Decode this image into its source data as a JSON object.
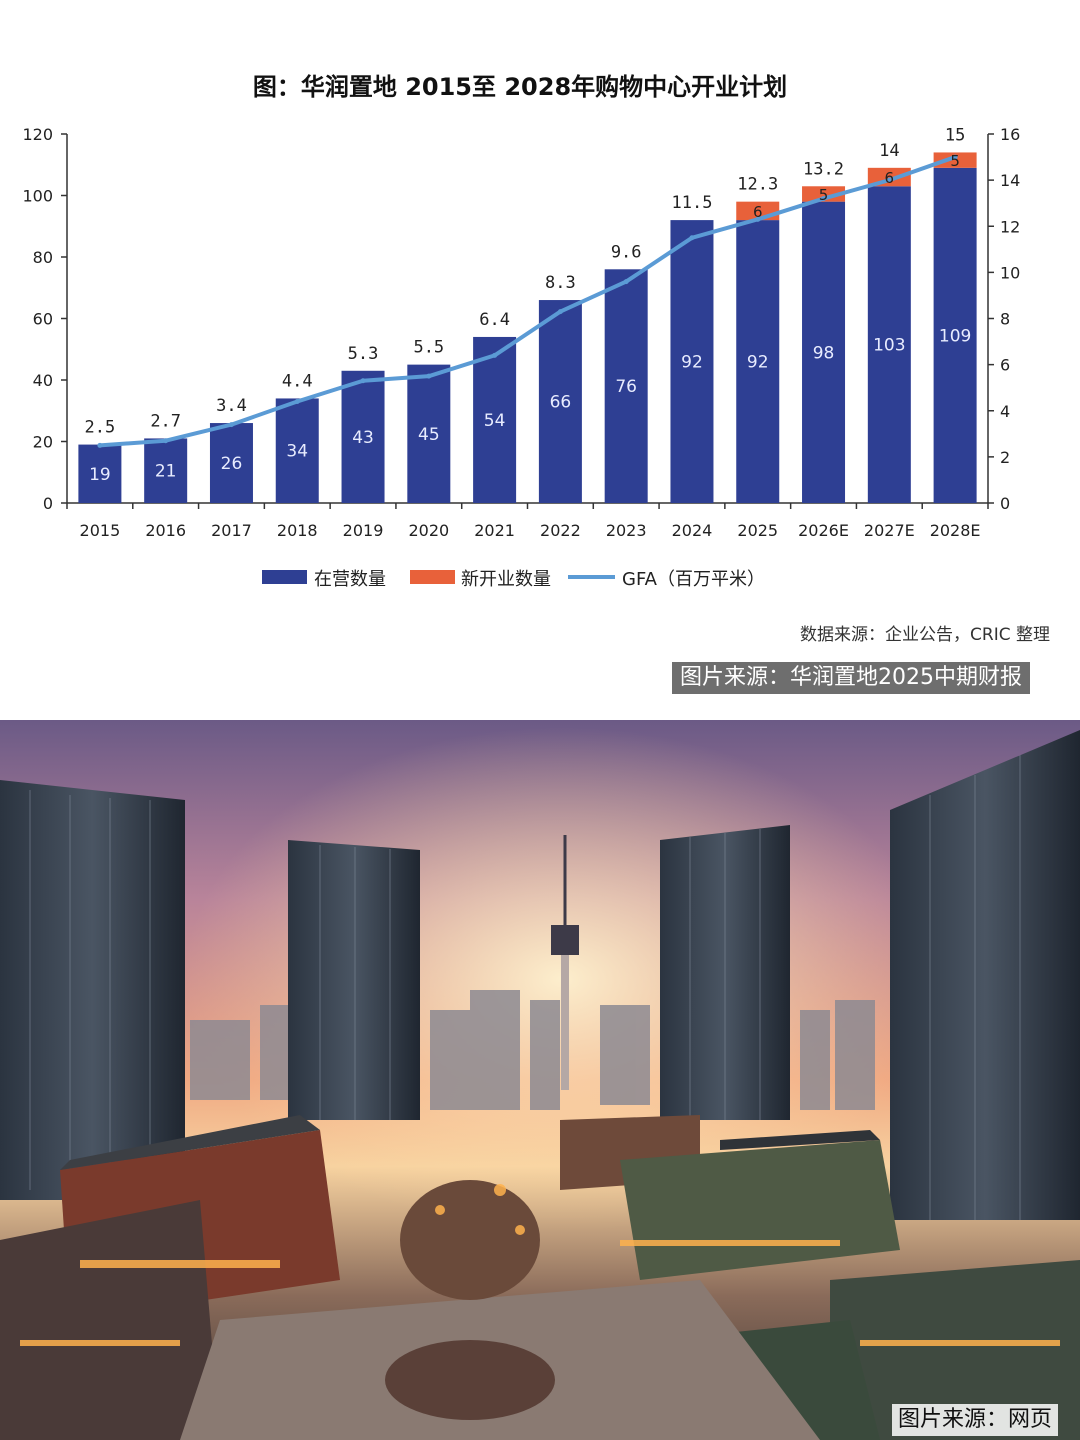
{
  "chart_data": {
    "type": "bar",
    "title": "图：华润置地 2015至 2028年购物中心开业计划",
    "categories": [
      "2015",
      "2016",
      "2017",
      "2018",
      "2019",
      "2020",
      "2021",
      "2022",
      "2023",
      "2024",
      "2025",
      "2026E",
      "2027E",
      "2028E"
    ],
    "series": [
      {
        "name": "在营数量",
        "type": "bar",
        "axis": "left",
        "color": "#2e3f93",
        "values": [
          19,
          21,
          26,
          34,
          43,
          45,
          54,
          66,
          76,
          92,
          92,
          98,
          103,
          109
        ]
      },
      {
        "name": "新开业数量",
        "type": "bar-stacked",
        "axis": "left",
        "color": "#e8613a",
        "values": [
          0,
          0,
          0,
          0,
          0,
          0,
          0,
          0,
          0,
          0,
          6,
          5,
          6,
          5
        ],
        "labels": [
          "",
          "",
          "",
          "",
          "",
          "",
          "",
          "",
          "",
          "",
          "6",
          "5",
          "6",
          "5"
        ]
      },
      {
        "name": "GFA（百万平米）",
        "type": "line",
        "axis": "right",
        "color": "#5b9bd5",
        "values": [
          2.5,
          2.7,
          3.4,
          4.4,
          5.3,
          5.5,
          6.4,
          8.3,
          9.6,
          11.5,
          12.3,
          13.2,
          14,
          15
        ],
        "labels": [
          "2.5",
          "2.7",
          "3.4",
          "4.4",
          "5.3",
          "5.5",
          "6.4",
          "8.3",
          "9.6",
          "11.5",
          "12.3",
          "13.2",
          "14",
          "15"
        ]
      }
    ],
    "y_left": {
      "min": 0,
      "max": 120,
      "ticks": [
        "0",
        "20",
        "40",
        "60",
        "80",
        "100",
        "120"
      ]
    },
    "y_right": {
      "min": 0,
      "max": 16,
      "ticks": [
        "0",
        "2",
        "4",
        "6",
        "8",
        "10",
        "12",
        "14",
        "16"
      ]
    },
    "legend_position": "bottom",
    "grid": false
  },
  "legend": [
    "在营数量",
    "新开业数量",
    "GFA（百万平米）"
  ],
  "source_note": "数据来源：企业公告，CRIC 整理",
  "credit_top": "图片来源：华润置地2025中期财报",
  "credit_bottom": "图片来源：网页",
  "photo": {
    "icon": "city-skyline-photo"
  }
}
